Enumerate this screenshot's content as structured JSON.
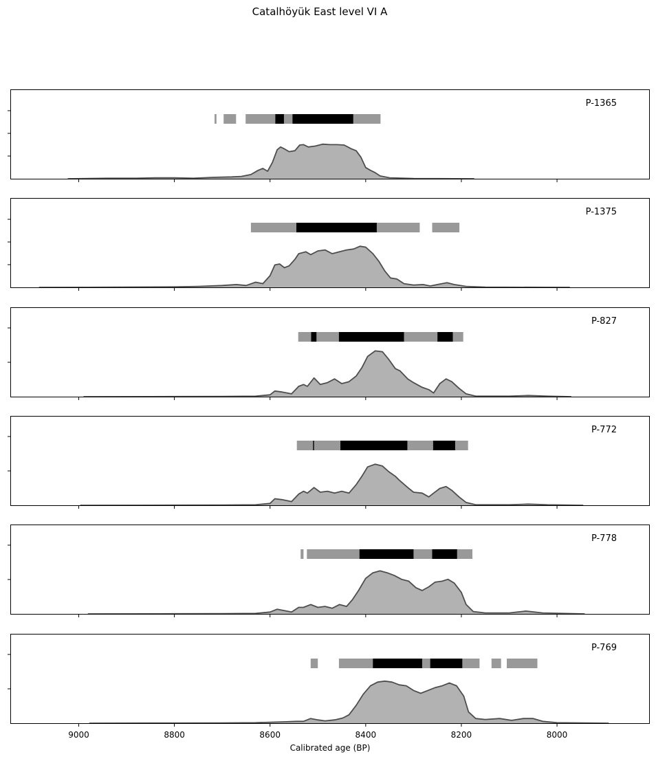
{
  "title": "Catalhöyük East level VI A",
  "colors": {
    "density_fill": "#b2b2b2",
    "density_line": "#4d4d4d",
    "range_gray": "#999999",
    "range_black": "#000000"
  },
  "chart_data": {
    "type": "area",
    "title": "Catalhöyük East level VI A",
    "xlabel": "Calibrated age (BP)",
    "xlim": [
      9143,
      7806
    ],
    "x_reversed": true,
    "xticks": [
      9000,
      8800,
      8600,
      8400,
      8200,
      8000
    ],
    "grid": false,
    "panels": [
      {
        "label": "P-1365",
        "gray_ranges": [
          [
            8716,
            8712
          ],
          [
            8697,
            8671
          ],
          [
            8651,
            8545
          ],
          [
            8463,
            8369
          ]
        ],
        "black_ranges": [
          [
            8589,
            8571
          ],
          [
            8553,
            8426
          ]
        ],
        "density": [
          [
            9023,
            0
          ],
          [
            8940,
            0.01
          ],
          [
            8880,
            0.01
          ],
          [
            8840,
            0.02
          ],
          [
            8800,
            0.02
          ],
          [
            8760,
            0.01
          ],
          [
            8720,
            0.03
          ],
          [
            8680,
            0.04
          ],
          [
            8660,
            0.05
          ],
          [
            8640,
            0.09
          ],
          [
            8625,
            0.18
          ],
          [
            8615,
            0.22
          ],
          [
            8605,
            0.16
          ],
          [
            8595,
            0.35
          ],
          [
            8585,
            0.62
          ],
          [
            8578,
            0.68
          ],
          [
            8572,
            0.65
          ],
          [
            8560,
            0.58
          ],
          [
            8548,
            0.6
          ],
          [
            8538,
            0.72
          ],
          [
            8530,
            0.73
          ],
          [
            8520,
            0.68
          ],
          [
            8505,
            0.7
          ],
          [
            8490,
            0.74
          ],
          [
            8475,
            0.73
          ],
          [
            8460,
            0.73
          ],
          [
            8445,
            0.72
          ],
          [
            8430,
            0.64
          ],
          [
            8420,
            0.6
          ],
          [
            8410,
            0.46
          ],
          [
            8400,
            0.24
          ],
          [
            8390,
            0.18
          ],
          [
            8380,
            0.13
          ],
          [
            8370,
            0.06
          ],
          [
            8350,
            0.02
          ],
          [
            8300,
            0.005
          ],
          [
            8250,
            0.003
          ],
          [
            8173,
            0
          ]
        ]
      },
      {
        "label": "P-1375",
        "gray_ranges": [
          [
            8640,
            8287
          ],
          [
            8261,
            8204
          ]
        ],
        "black_ranges": [
          [
            8545,
            8377
          ]
        ],
        "density": [
          [
            9083,
            0
          ],
          [
            8950,
            0.003
          ],
          [
            8800,
            0.01
          ],
          [
            8750,
            0.02
          ],
          [
            8700,
            0.04
          ],
          [
            8670,
            0.06
          ],
          [
            8650,
            0.04
          ],
          [
            8630,
            0.11
          ],
          [
            8615,
            0.08
          ],
          [
            8600,
            0.25
          ],
          [
            8590,
            0.48
          ],
          [
            8580,
            0.5
          ],
          [
            8570,
            0.42
          ],
          [
            8560,
            0.46
          ],
          [
            8548,
            0.6
          ],
          [
            8540,
            0.72
          ],
          [
            8525,
            0.76
          ],
          [
            8515,
            0.7
          ],
          [
            8500,
            0.78
          ],
          [
            8485,
            0.8
          ],
          [
            8470,
            0.72
          ],
          [
            8455,
            0.76
          ],
          [
            8440,
            0.8
          ],
          [
            8425,
            0.82
          ],
          [
            8412,
            0.88
          ],
          [
            8400,
            0.86
          ],
          [
            8385,
            0.72
          ],
          [
            8372,
            0.55
          ],
          [
            8360,
            0.35
          ],
          [
            8348,
            0.2
          ],
          [
            8335,
            0.18
          ],
          [
            8320,
            0.08
          ],
          [
            8300,
            0.05
          ],
          [
            8280,
            0.06
          ],
          [
            8265,
            0.03
          ],
          [
            8250,
            0.06
          ],
          [
            8230,
            0.1
          ],
          [
            8215,
            0.06
          ],
          [
            8190,
            0.02
          ],
          [
            8150,
            0.005
          ],
          [
            7973,
            0
          ]
        ]
      },
      {
        "label": "P-827",
        "gray_ranges": [
          [
            8541,
            8196
          ]
        ],
        "black_ranges": [
          [
            8514,
            8503
          ],
          [
            8456,
            8320
          ],
          [
            8250,
            8218
          ]
        ],
        "density": [
          [
            8990,
            0
          ],
          [
            8850,
            0.002
          ],
          [
            8700,
            0.004
          ],
          [
            8630,
            0.01
          ],
          [
            8600,
            0.04
          ],
          [
            8590,
            0.12
          ],
          [
            8575,
            0.1
          ],
          [
            8555,
            0.06
          ],
          [
            8540,
            0.22
          ],
          [
            8530,
            0.26
          ],
          [
            8522,
            0.22
          ],
          [
            8508,
            0.4
          ],
          [
            8495,
            0.26
          ],
          [
            8480,
            0.3
          ],
          [
            8465,
            0.38
          ],
          [
            8450,
            0.28
          ],
          [
            8435,
            0.32
          ],
          [
            8420,
            0.44
          ],
          [
            8408,
            0.62
          ],
          [
            8396,
            0.86
          ],
          [
            8380,
            0.98
          ],
          [
            8365,
            0.96
          ],
          [
            8352,
            0.8
          ],
          [
            8338,
            0.6
          ],
          [
            8328,
            0.55
          ],
          [
            8312,
            0.38
          ],
          [
            8300,
            0.3
          ],
          [
            8282,
            0.2
          ],
          [
            8268,
            0.15
          ],
          [
            8258,
            0.08
          ],
          [
            8245,
            0.28
          ],
          [
            8232,
            0.38
          ],
          [
            8220,
            0.32
          ],
          [
            8205,
            0.18
          ],
          [
            8190,
            0.06
          ],
          [
            8170,
            0.01
          ],
          [
            8100,
            0.01
          ],
          [
            8060,
            0.025
          ],
          [
            8020,
            0.01
          ],
          [
            7970,
            0
          ]
        ]
      },
      {
        "label": "P-772",
        "gray_ranges": [
          [
            8544,
            8186
          ]
        ],
        "black_ranges": [
          [
            8510,
            8508
          ],
          [
            8453,
            8313
          ],
          [
            8259,
            8213
          ]
        ],
        "density": [
          [
            8997,
            0
          ],
          [
            8850,
            0.002
          ],
          [
            8700,
            0.004
          ],
          [
            8630,
            0.01
          ],
          [
            8600,
            0.04
          ],
          [
            8590,
            0.14
          ],
          [
            8575,
            0.12
          ],
          [
            8555,
            0.08
          ],
          [
            8540,
            0.24
          ],
          [
            8530,
            0.3
          ],
          [
            8522,
            0.26
          ],
          [
            8508,
            0.38
          ],
          [
            8495,
            0.28
          ],
          [
            8480,
            0.3
          ],
          [
            8465,
            0.26
          ],
          [
            8450,
            0.3
          ],
          [
            8435,
            0.26
          ],
          [
            8420,
            0.44
          ],
          [
            8408,
            0.62
          ],
          [
            8396,
            0.82
          ],
          [
            8380,
            0.88
          ],
          [
            8365,
            0.84
          ],
          [
            8352,
            0.72
          ],
          [
            8338,
            0.62
          ],
          [
            8328,
            0.52
          ],
          [
            8312,
            0.38
          ],
          [
            8300,
            0.28
          ],
          [
            8282,
            0.26
          ],
          [
            8268,
            0.18
          ],
          [
            8258,
            0.26
          ],
          [
            8245,
            0.36
          ],
          [
            8232,
            0.4
          ],
          [
            8220,
            0.32
          ],
          [
            8205,
            0.18
          ],
          [
            8190,
            0.06
          ],
          [
            8170,
            0.01
          ],
          [
            8100,
            0.01
          ],
          [
            8060,
            0.025
          ],
          [
            8020,
            0.01
          ],
          [
            7945,
            0
          ]
        ]
      },
      {
        "label": "P-778",
        "gray_ranges": [
          [
            8536,
            8530
          ],
          [
            8523,
            8177
          ]
        ],
        "black_ranges": [
          [
            8413,
            8300
          ],
          [
            8261,
            8209
          ]
        ],
        "density": [
          [
            8981,
            0
          ],
          [
            8850,
            0.002
          ],
          [
            8700,
            0.004
          ],
          [
            8630,
            0.01
          ],
          [
            8600,
            0.04
          ],
          [
            8585,
            0.1
          ],
          [
            8570,
            0.07
          ],
          [
            8555,
            0.04
          ],
          [
            8540,
            0.14
          ],
          [
            8530,
            0.14
          ],
          [
            8515,
            0.2
          ],
          [
            8500,
            0.14
          ],
          [
            8485,
            0.16
          ],
          [
            8470,
            0.12
          ],
          [
            8455,
            0.2
          ],
          [
            8440,
            0.16
          ],
          [
            8428,
            0.3
          ],
          [
            8415,
            0.5
          ],
          [
            8400,
            0.76
          ],
          [
            8385,
            0.88
          ],
          [
            8370,
            0.92
          ],
          [
            8355,
            0.88
          ],
          [
            8340,
            0.82
          ],
          [
            8325,
            0.74
          ],
          [
            8310,
            0.7
          ],
          [
            8295,
            0.56
          ],
          [
            8282,
            0.5
          ],
          [
            8268,
            0.58
          ],
          [
            8255,
            0.68
          ],
          [
            8240,
            0.7
          ],
          [
            8228,
            0.74
          ],
          [
            8215,
            0.66
          ],
          [
            8200,
            0.46
          ],
          [
            8190,
            0.2
          ],
          [
            8175,
            0.05
          ],
          [
            8150,
            0.02
          ],
          [
            8100,
            0.02
          ],
          [
            8065,
            0.06
          ],
          [
            8030,
            0.02
          ],
          [
            7942,
            0
          ]
        ]
      },
      {
        "label": "P-769",
        "gray_ranges": [
          [
            8515,
            8500
          ],
          [
            8456,
            8162
          ],
          [
            8137,
            8117
          ],
          [
            8105,
            8041
          ]
        ],
        "black_ranges": [
          [
            8385,
            8282
          ],
          [
            8265,
            8198
          ]
        ],
        "density": [
          [
            8978,
            0
          ],
          [
            8850,
            0.003
          ],
          [
            8700,
            0.006
          ],
          [
            8630,
            0.01
          ],
          [
            8600,
            0.02
          ],
          [
            8570,
            0.03
          ],
          [
            8545,
            0.04
          ],
          [
            8530,
            0.04
          ],
          [
            8515,
            0.1
          ],
          [
            8500,
            0.07
          ],
          [
            8485,
            0.05
          ],
          [
            8465,
            0.07
          ],
          [
            8448,
            0.11
          ],
          [
            8435,
            0.18
          ],
          [
            8420,
            0.38
          ],
          [
            8405,
            0.62
          ],
          [
            8390,
            0.8
          ],
          [
            8375,
            0.88
          ],
          [
            8360,
            0.9
          ],
          [
            8345,
            0.88
          ],
          [
            8330,
            0.82
          ],
          [
            8315,
            0.8
          ],
          [
            8300,
            0.7
          ],
          [
            8285,
            0.64
          ],
          [
            8270,
            0.7
          ],
          [
            8255,
            0.76
          ],
          [
            8240,
            0.8
          ],
          [
            8225,
            0.86
          ],
          [
            8210,
            0.8
          ],
          [
            8195,
            0.58
          ],
          [
            8185,
            0.24
          ],
          [
            8170,
            0.1
          ],
          [
            8150,
            0.08
          ],
          [
            8120,
            0.1
          ],
          [
            8095,
            0.06
          ],
          [
            8070,
            0.1
          ],
          [
            8050,
            0.1
          ],
          [
            8030,
            0.04
          ],
          [
            8000,
            0.01
          ],
          [
            7892,
            0
          ]
        ]
      }
    ]
  }
}
